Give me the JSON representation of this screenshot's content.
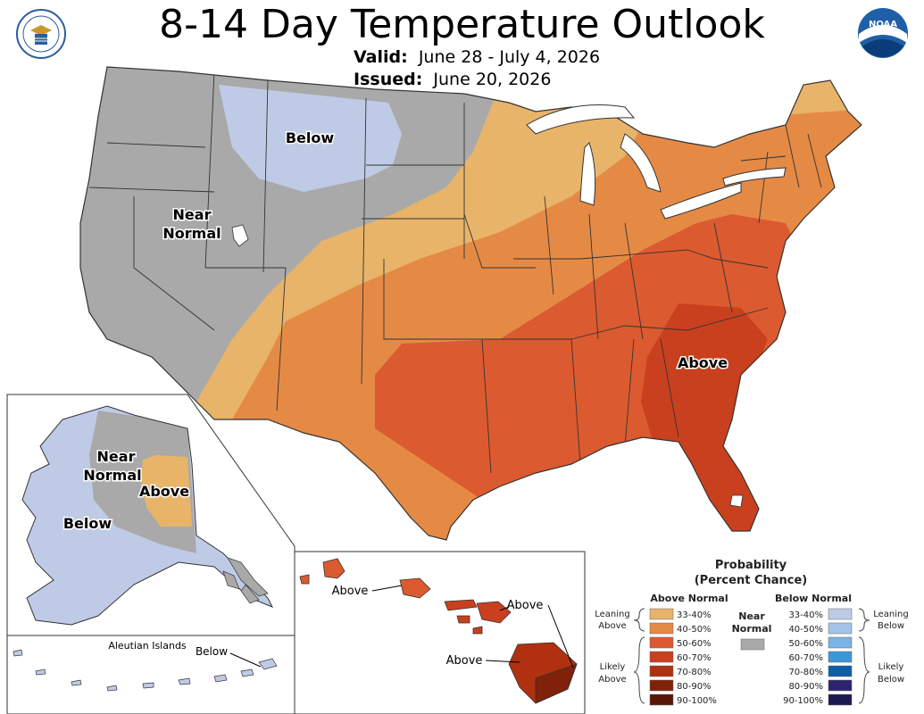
{
  "header": {
    "title": "8-14 Day Temperature Outlook",
    "valid_label": "Valid:",
    "valid_value": "June 28 - July 4, 2026",
    "issued_label": "Issued:",
    "issued_value": "June 20, 2026"
  },
  "logos": {
    "left_icon": "doc-seal-icon",
    "right_icon": "noaa-logo-icon",
    "noaa_text": "NOAA"
  },
  "map_labels": {
    "conus_below": "Below",
    "conus_near_1": "Near",
    "conus_near_2": "Normal",
    "conus_above": "Above",
    "ak_near_1": "Near",
    "ak_near_2": "Normal",
    "ak_above": "Above",
    "ak_below": "Below",
    "aleutian_title": "Aleutian Islands",
    "aleutian_below": "Below",
    "hi_above_1": "Above",
    "hi_above_2": "Above",
    "hi_above_3": "Above"
  },
  "legend": {
    "title_1": "Probability",
    "title_2": "(Percent Chance)",
    "above_header": "Above Normal",
    "below_header": "Below Normal",
    "near_1": "Near",
    "near_2": "Normal",
    "leaning_above_1": "Leaning",
    "leaning_above_2": "Above",
    "likely_above_1": "Likely",
    "likely_above_2": "Above",
    "leaning_below_1": "Leaning",
    "leaning_below_2": "Below",
    "likely_below_1": "Likely",
    "likely_below_2": "Below",
    "above_bins": [
      {
        "label": "33-40%",
        "color": "#e8b46a"
      },
      {
        "label": "40-50%",
        "color": "#e58a45"
      },
      {
        "label": "50-60%",
        "color": "#dc5a30"
      },
      {
        "label": "60-70%",
        "color": "#c9401f"
      },
      {
        "label": "70-80%",
        "color": "#b0300f"
      },
      {
        "label": "80-90%",
        "color": "#80210a"
      },
      {
        "label": "90-100%",
        "color": "#591505"
      }
    ],
    "below_bins": [
      {
        "label": "33-40%",
        "color": "#bfcbe6"
      },
      {
        "label": "40-50%",
        "color": "#a3c3e8"
      },
      {
        "label": "50-60%",
        "color": "#78b4e6"
      },
      {
        "label": "60-70%",
        "color": "#3c97d8"
      },
      {
        "label": "70-80%",
        "color": "#0d5da8"
      },
      {
        "label": "80-90%",
        "color": "#2b2570"
      },
      {
        "label": "90-100%",
        "color": "#1d1950"
      }
    ],
    "near_color": "#a9a9a9"
  }
}
